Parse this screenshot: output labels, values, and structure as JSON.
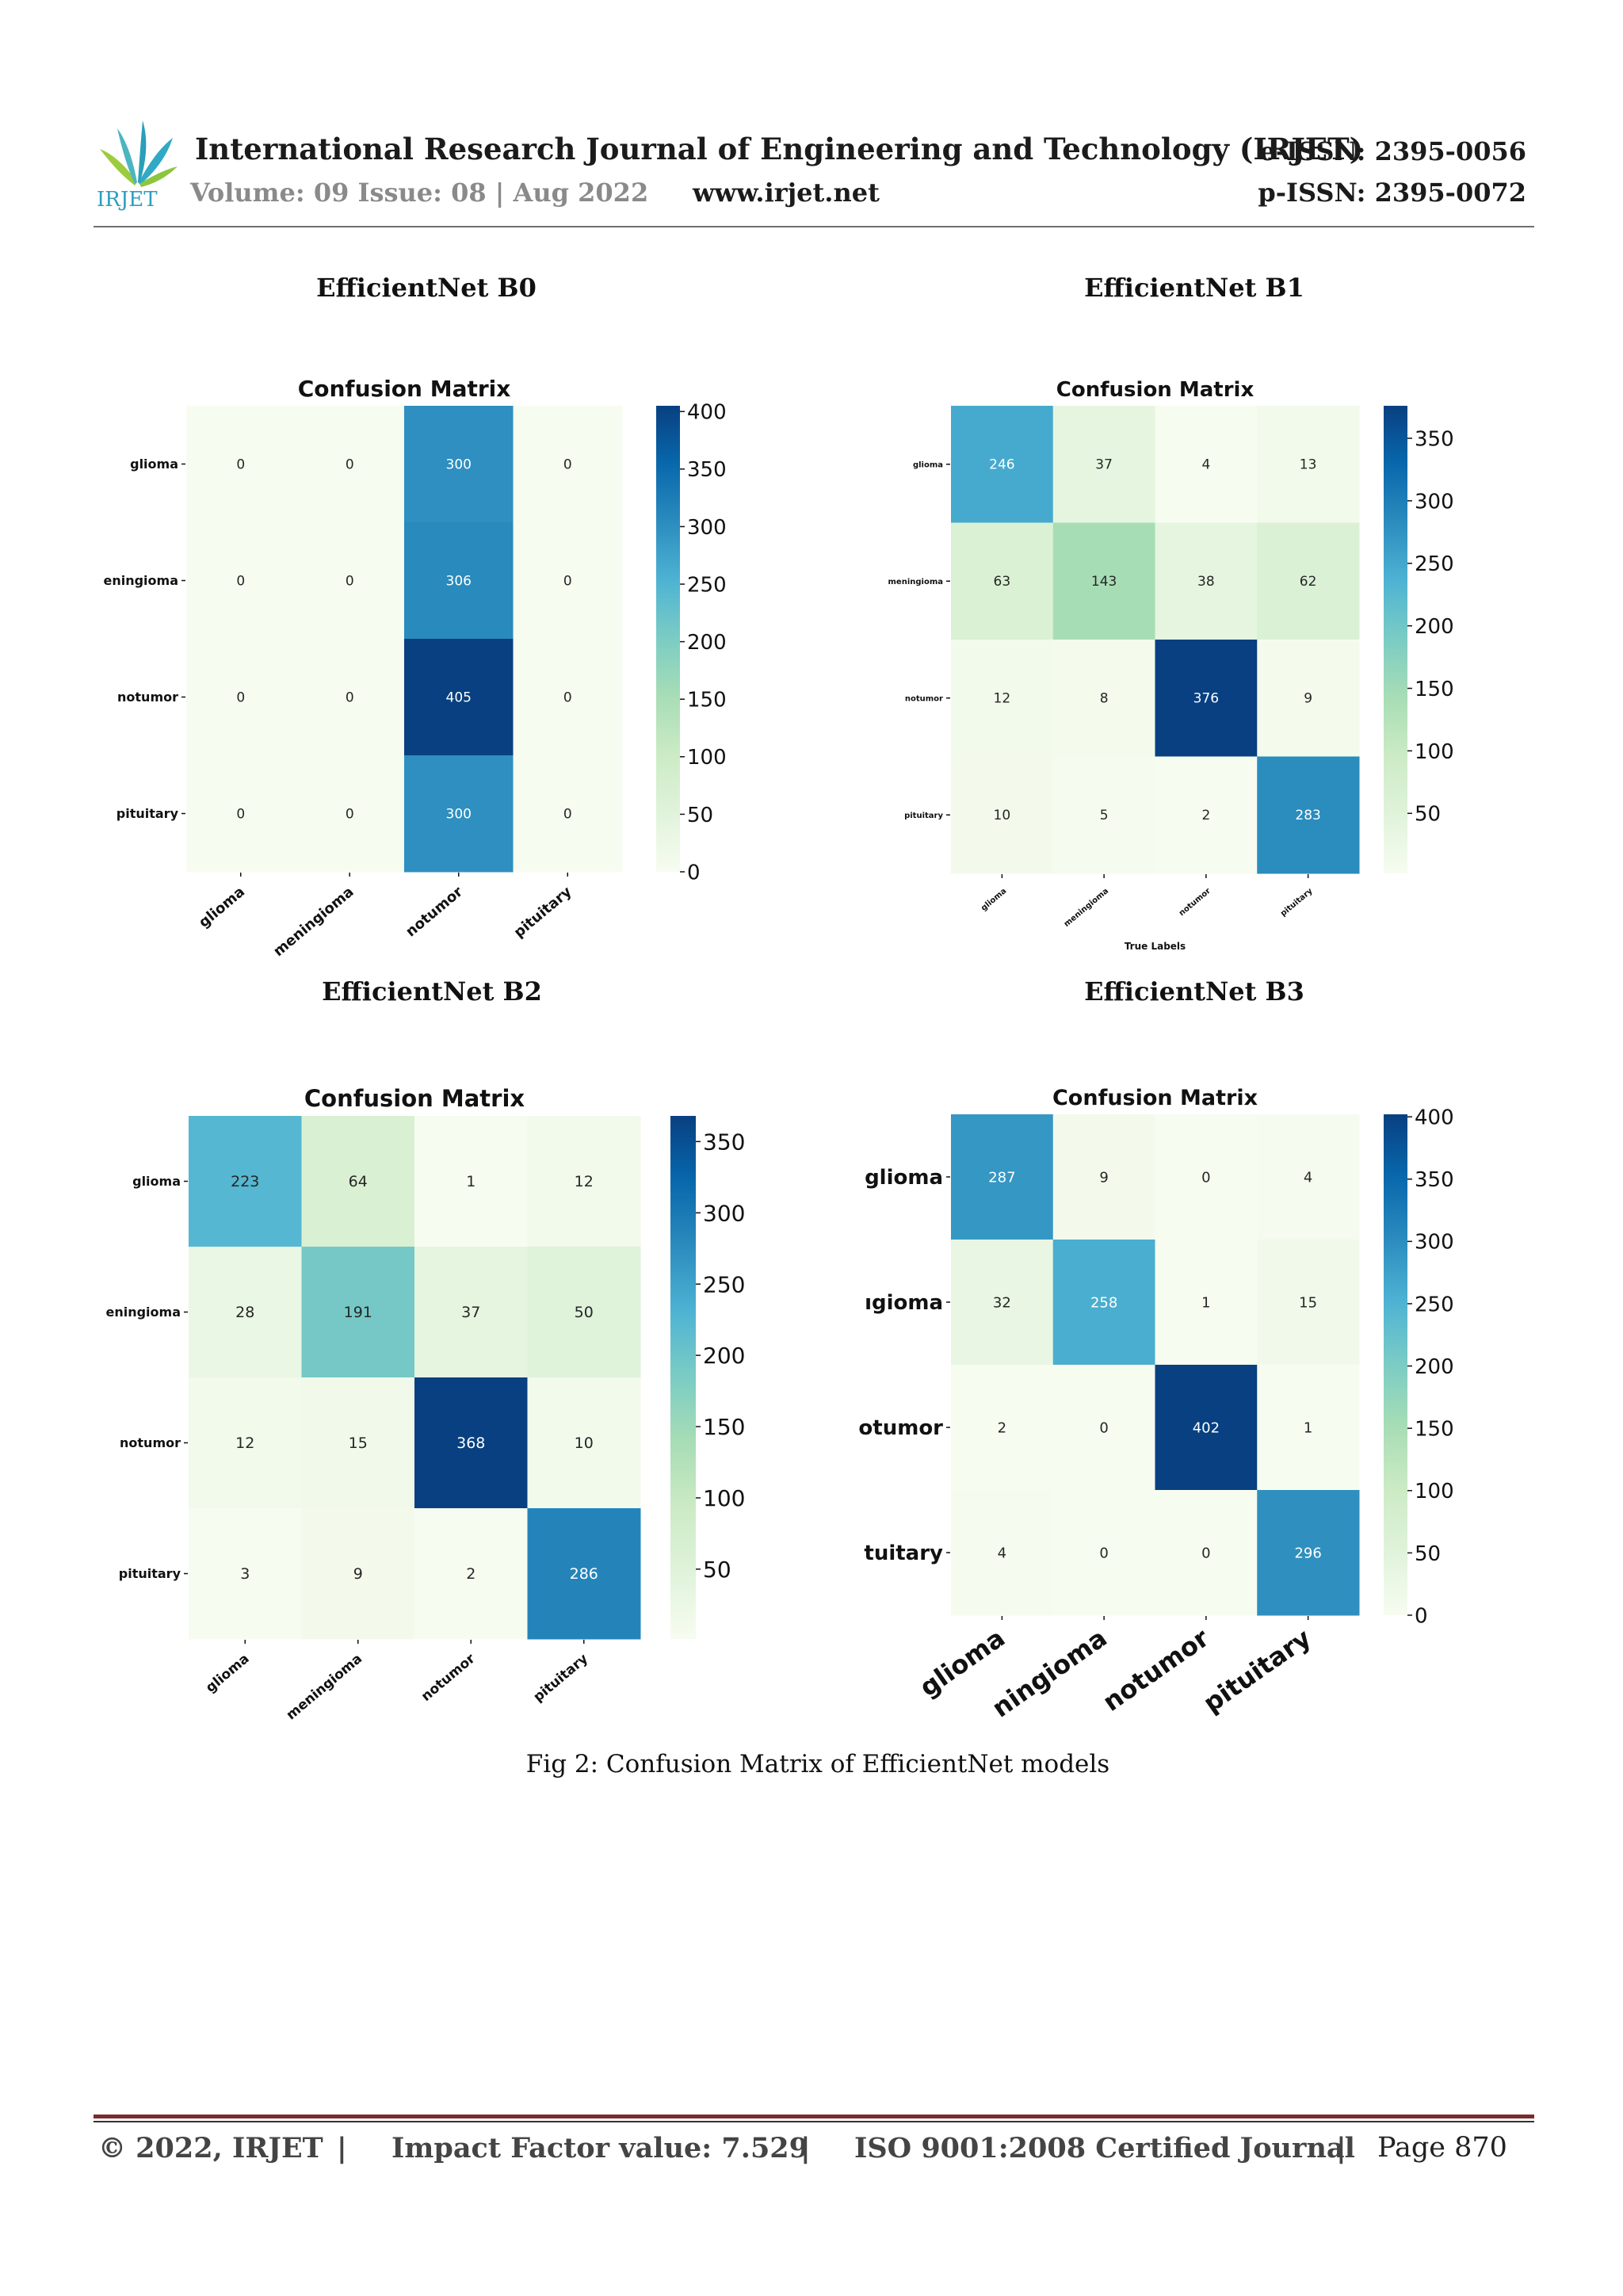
{
  "header": {
    "journal_title": "International Research Journal of Engineering and Technology (IRJET)",
    "volume_issue": "Volume: 09 Issue: 08 | Aug 2022",
    "website": "www.irjet.net",
    "e_issn": "e-ISSN: 2395-0056",
    "p_issn": "p-ISSN: 2395-0072",
    "logo_text": "IRJET"
  },
  "model_titles": [
    "EfficientNet B0",
    "EfficientNet B1",
    "EfficientNet B2",
    "EfficientNet B3"
  ],
  "chart_data": [
    {
      "type": "heatmap",
      "title": "Confusion Matrix",
      "xlabel": "",
      "ylabel": "",
      "x_tick_labels": [
        "glioma",
        "meningioma",
        "notumor",
        "pituitary"
      ],
      "y_tick_labels": [
        "glioma",
        "eningioma",
        "notumor",
        "pituitary"
      ],
      "values": [
        [
          0,
          0,
          300,
          0
        ],
        [
          0,
          0,
          306,
          0
        ],
        [
          0,
          0,
          405,
          0
        ],
        [
          0,
          0,
          300,
          0
        ]
      ],
      "vmin": 0,
      "vmax": 405,
      "colorbar_ticks": [
        0,
        50,
        100,
        150,
        200,
        250,
        300,
        350,
        400
      ],
      "colormap": "GnBu"
    },
    {
      "type": "heatmap",
      "title": "Confusion Matrix",
      "xlabel": "True Labels",
      "ylabel": "",
      "x_tick_labels": [
        "glioma",
        "meningioma",
        "notumor",
        "pituitary"
      ],
      "y_tick_labels": [
        "glioma",
        "meningioma",
        "notumor",
        "pituitary"
      ],
      "values": [
        [
          246,
          37,
          4,
          13
        ],
        [
          63,
          143,
          38,
          62
        ],
        [
          12,
          8,
          376,
          9
        ],
        [
          10,
          5,
          2,
          283
        ]
      ],
      "vmin": 2,
      "vmax": 376,
      "colorbar_ticks": [
        50,
        100,
        150,
        200,
        250,
        300,
        350
      ],
      "colormap": "GnBu"
    },
    {
      "type": "heatmap",
      "title": "Confusion Matrix",
      "xlabel": "",
      "ylabel": "",
      "x_tick_labels": [
        "glioma",
        "meningioma",
        "notumor",
        "pituitary"
      ],
      "y_tick_labels": [
        "glioma",
        "eningioma",
        "notumor",
        "pituitary"
      ],
      "values": [
        [
          223,
          64,
          1,
          12
        ],
        [
          28,
          191,
          37,
          50
        ],
        [
          12,
          15,
          368,
          10
        ],
        [
          3,
          9,
          2,
          286
        ]
      ],
      "vmin": 1,
      "vmax": 368,
      "colorbar_ticks": [
        50,
        100,
        150,
        200,
        250,
        300,
        350
      ],
      "colormap": "GnBu"
    },
    {
      "type": "heatmap",
      "title": "Confusion Matrix",
      "xlabel": "",
      "ylabel": "",
      "x_tick_labels": [
        "glioma",
        "ningioma",
        "notumor",
        "pituitary"
      ],
      "y_tick_labels": [
        "glioma",
        "ıgioma",
        "otumor",
        "tuitary"
      ],
      "values": [
        [
          287,
          9,
          0,
          4
        ],
        [
          32,
          258,
          1,
          15
        ],
        [
          2,
          0,
          402,
          1
        ],
        [
          4,
          0,
          0,
          296
        ]
      ],
      "vmin": 0,
      "vmax": 402,
      "colorbar_ticks": [
        0,
        50,
        100,
        150,
        200,
        250,
        300,
        350,
        400
      ],
      "colormap": "GnBu"
    }
  ],
  "caption": "Fig 2: Confusion Matrix of EfficientNet models",
  "footer": {
    "copyright": "© 2022, IRJET",
    "separator": "|",
    "impact_factor": "Impact Factor value: 7.529",
    "iso": "ISO 9001:2008 Certified Journal",
    "page": "Page 870"
  }
}
